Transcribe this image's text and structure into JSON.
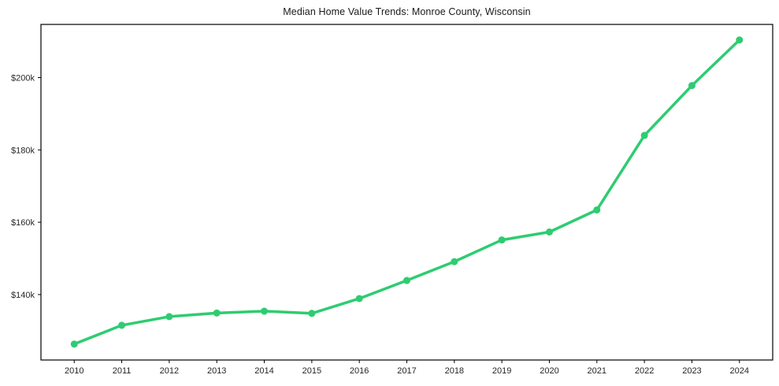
{
  "chart_data": {
    "type": "line",
    "title": "Median Home Value Trends: Monroe County, Wisconsin",
    "series_name": "Median Home Value",
    "x": [
      2010,
      2011,
      2012,
      2013,
      2014,
      2015,
      2016,
      2017,
      2018,
      2019,
      2020,
      2021,
      2022,
      2023,
      2024
    ],
    "xtick_labels": [
      "2010",
      "2011",
      "2012",
      "2013",
      "2014",
      "2015",
      "2016",
      "2017",
      "2018",
      "2019",
      "2020",
      "2021",
      "2022",
      "2023",
      "2024"
    ],
    "values": [
      126300,
      131500,
      133900,
      134900,
      135400,
      134800,
      138900,
      143900,
      149100,
      155100,
      157300,
      163400,
      184000,
      197800,
      210400
    ],
    "yticks": [
      {
        "value": 140000,
        "label": "$140k"
      },
      {
        "value": 160000,
        "label": "$160k"
      },
      {
        "value": 180000,
        "label": "$180k"
      },
      {
        "value": 200000,
        "label": "$200k"
      }
    ],
    "xlim": [
      2009.3,
      2024.7
    ],
    "ylim": [
      121900,
      214700
    ],
    "grid": false,
    "legend": null,
    "line_color": "#2ecc71",
    "marker_color": "#2ecc71",
    "axis_color": "#000000",
    "background_color": "#ffffff"
  }
}
